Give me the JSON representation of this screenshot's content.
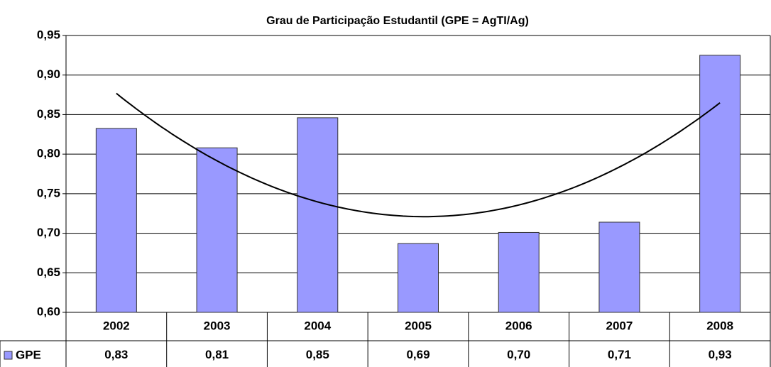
{
  "chart_data": {
    "type": "bar",
    "title": "Grau de Participação Estudantil (GPE = AgTI/Ag)",
    "categories": [
      "2002",
      "2003",
      "2004",
      "2005",
      "2006",
      "2007",
      "2008"
    ],
    "series": [
      {
        "name": "GPE",
        "color": "#9999ff",
        "values": [
          0.8325,
          0.808,
          0.846,
          0.687,
          0.701,
          0.714,
          0.925
        ],
        "value_labels": [
          "0,83",
          "0,81",
          "0,85",
          "0,69",
          "0,70",
          "0,71",
          "0,93"
        ]
      }
    ],
    "trendline": {
      "type": "polynomial",
      "order": 2
    },
    "ylim": [
      0.6,
      0.95
    ],
    "yticks": [
      {
        "value": 0.6,
        "label": "0,60"
      },
      {
        "value": 0.65,
        "label": "0,65"
      },
      {
        "value": 0.7,
        "label": "0,70"
      },
      {
        "value": 0.75,
        "label": "0,75"
      },
      {
        "value": 0.8,
        "label": "0,80"
      },
      {
        "value": 0.85,
        "label": "0,85"
      },
      {
        "value": 0.9,
        "label": "0,90"
      },
      {
        "value": 0.95,
        "label": "0,95"
      }
    ],
    "grid": true,
    "data_table": true
  }
}
